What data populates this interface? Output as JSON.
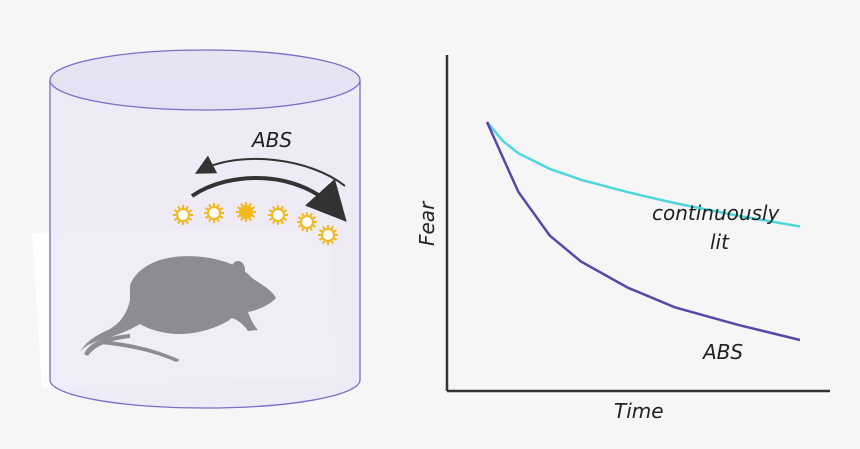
{
  "apparatus": {
    "label": "ABS"
  },
  "chart_data": {
    "type": "line",
    "xlabel": "Time",
    "ylabel": "Fear",
    "axis_scale": "no tick marks or numbers",
    "grid": false,
    "series": [
      {
        "name": "continuously lit",
        "color": "#4ed6dc",
        "x": [
          0,
          0.05,
          0.1,
          0.2,
          0.3,
          0.45,
          0.6,
          0.8,
          1.0
        ],
        "y": [
          1.0,
          0.88,
          0.8,
          0.7,
          0.63,
          0.55,
          0.48,
          0.4,
          0.33
        ]
      },
      {
        "name": "ABS",
        "color": "#5b46a8",
        "x": [
          0,
          0.05,
          0.1,
          0.2,
          0.3,
          0.45,
          0.6,
          0.8,
          1.0
        ],
        "y": [
          1.0,
          0.84,
          0.68,
          0.48,
          0.36,
          0.24,
          0.15,
          0.07,
          0.0
        ]
      }
    ]
  }
}
